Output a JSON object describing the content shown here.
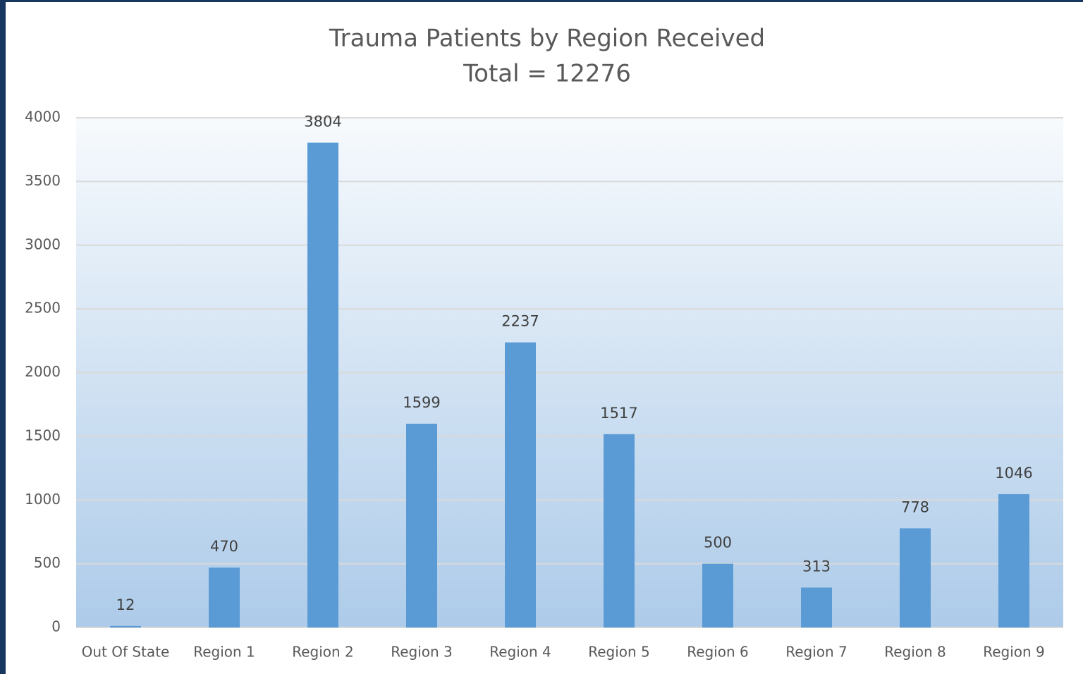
{
  "chart_data": {
    "type": "bar",
    "title": "Trauma Patients by Region Received",
    "subtitle": "Total = 12276",
    "categories": [
      "Out Of State",
      "Region 1",
      "Region 2",
      "Region 3",
      "Region 4",
      "Region 5",
      "Region 6",
      "Region 7",
      "Region 8",
      "Region 9"
    ],
    "values": [
      12,
      470,
      3804,
      1599,
      2237,
      1517,
      500,
      313,
      778,
      1046
    ],
    "color": "#5b9bd5",
    "ylim": [
      0,
      4000
    ],
    "yticks": [
      0,
      500,
      1000,
      1500,
      2000,
      2500,
      3000,
      3500,
      4000
    ],
    "grid": true
  }
}
